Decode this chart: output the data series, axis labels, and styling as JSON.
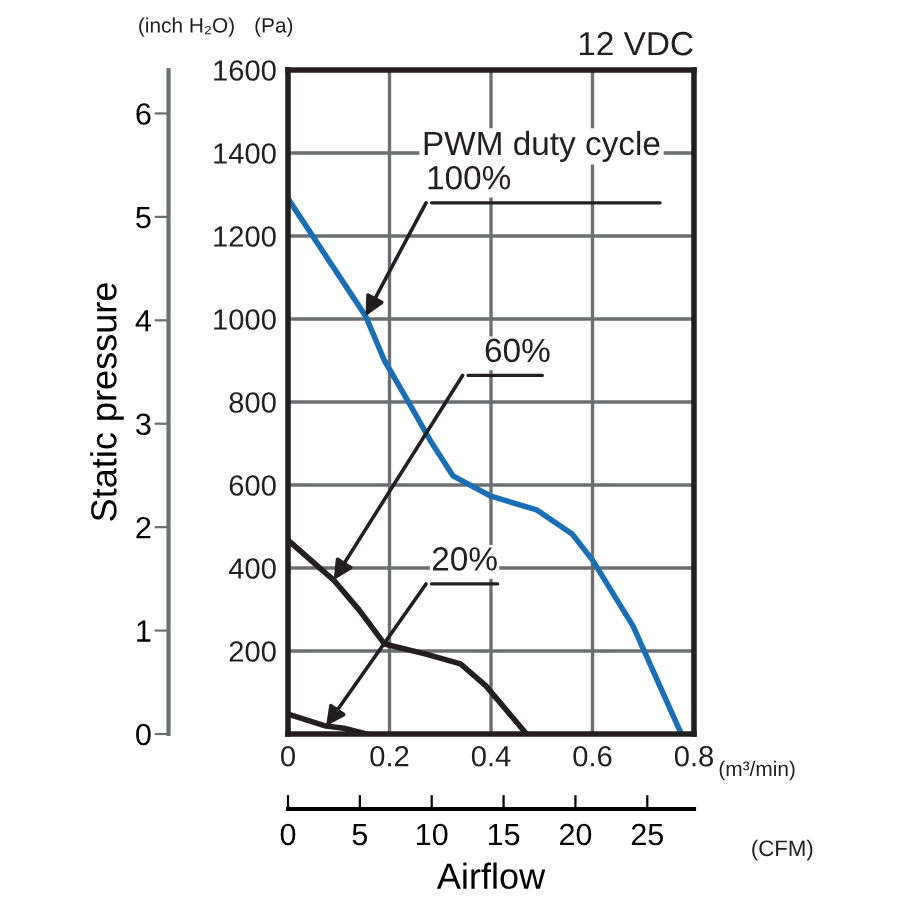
{
  "chart_data": {
    "type": "line",
    "xlabel": "Airflow",
    "ylabel": "Static pressure",
    "annotations": [
      "12 VDC",
      "PWM duty cycle",
      {
        "text": "100%",
        "x": 0.153,
        "y": 1007
      },
      {
        "text": "60%",
        "x": 0.09,
        "y": 371
      },
      {
        "text": "20%",
        "x": 0.075,
        "y": 19
      },
      "(inch H₂O)",
      "(Pa)",
      "(m³/min)",
      "(CFM)"
    ],
    "xlim": [
      0,
      0.8
    ],
    "xticks": [
      0,
      0.2,
      0.4,
      0.6,
      0.8
    ],
    "ylim": [
      0,
      1600
    ],
    "yticks": [
      200,
      400,
      600,
      800,
      1000,
      1200,
      1400,
      1600
    ],
    "y3lim": [
      0,
      6.42
    ],
    "y3ticks": [
      0,
      1,
      2,
      3,
      4,
      5,
      6
    ],
    "x2lim": [
      0,
      28.25
    ],
    "x2ticks": [
      0,
      5,
      10,
      15,
      20,
      25
    ],
    "grid": true,
    "marker": "none",
    "line_style": "solid",
    "series": [
      {
        "color": "#1a6eb5",
        "x": [
          0,
          0.153,
          0.19,
          0.235,
          0.28,
          0.325,
          0.4,
          0.49,
          0.56,
          0.6,
          0.68,
          0.775
        ],
        "values": [
          1290,
          1007,
          900,
          805,
          708,
          622,
          573,
          540,
          482,
          419,
          260,
          0
        ]
      },
      {
        "color": "#231f20",
        "x": [
          0,
          0.09,
          0.14,
          0.19,
          0.27,
          0.34,
          0.39,
          0.47
        ],
        "values": [
          467,
          371,
          299,
          217,
          193,
          169,
          116,
          0
        ]
      },
      {
        "color": "#231f20",
        "x": [
          0,
          0.075,
          0.11,
          0.155
        ],
        "values": [
          48,
          19,
          14,
          0
        ]
      }
    ]
  }
}
